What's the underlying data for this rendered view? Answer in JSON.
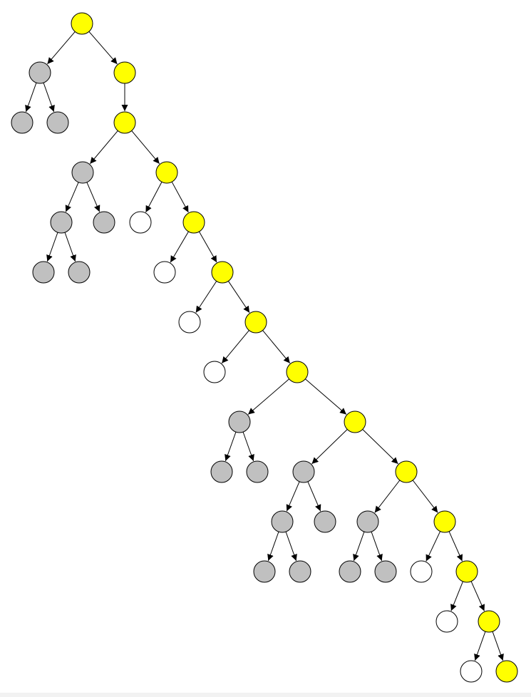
{
  "diagram": {
    "type": "tree",
    "colors": {
      "highlighted": "#ffff00",
      "explored": "#c0c0c0",
      "unexplored": "#ffffff",
      "stroke": "#000000"
    },
    "nodes": [
      {
        "id": "root",
        "state": "highlighted"
      },
      {
        "id": "n1",
        "state": "explored",
        "parent": "root"
      },
      {
        "id": "n1a",
        "state": "explored",
        "parent": "n1"
      },
      {
        "id": "n1b",
        "state": "explored",
        "parent": "n1"
      },
      {
        "id": "p1",
        "state": "highlighted",
        "parent": "root"
      },
      {
        "id": "p2",
        "state": "highlighted",
        "parent": "p1"
      },
      {
        "id": "g1",
        "state": "explored",
        "parent": "p2"
      },
      {
        "id": "g1a",
        "state": "explored",
        "parent": "g1"
      },
      {
        "id": "g1a1",
        "state": "explored",
        "parent": "g1a"
      },
      {
        "id": "g1a2",
        "state": "explored",
        "parent": "g1a"
      },
      {
        "id": "g1b",
        "state": "explored",
        "parent": "g1"
      },
      {
        "id": "p3",
        "state": "highlighted",
        "parent": "p2"
      },
      {
        "id": "w1",
        "state": "unexplored",
        "parent": "p3"
      },
      {
        "id": "p4",
        "state": "highlighted",
        "parent": "p3"
      },
      {
        "id": "w2",
        "state": "unexplored",
        "parent": "p4"
      },
      {
        "id": "p5",
        "state": "highlighted",
        "parent": "p4"
      },
      {
        "id": "w3",
        "state": "unexplored",
        "parent": "p5"
      },
      {
        "id": "p6",
        "state": "highlighted",
        "parent": "p5"
      },
      {
        "id": "w4",
        "state": "unexplored",
        "parent": "p6"
      },
      {
        "id": "p7",
        "state": "highlighted",
        "parent": "p6"
      },
      {
        "id": "g2",
        "state": "explored",
        "parent": "p7"
      },
      {
        "id": "g2a",
        "state": "explored",
        "parent": "g2"
      },
      {
        "id": "g2b",
        "state": "explored",
        "parent": "g2"
      },
      {
        "id": "p8",
        "state": "highlighted",
        "parent": "p7"
      },
      {
        "id": "g3",
        "state": "explored",
        "parent": "p8"
      },
      {
        "id": "g3a",
        "state": "explored",
        "parent": "g3"
      },
      {
        "id": "g3a1",
        "state": "explored",
        "parent": "g3a"
      },
      {
        "id": "g3a2",
        "state": "explored",
        "parent": "g3a"
      },
      {
        "id": "g3b",
        "state": "explored",
        "parent": "g3"
      },
      {
        "id": "p9",
        "state": "highlighted",
        "parent": "p8"
      },
      {
        "id": "g4",
        "state": "explored",
        "parent": "p9"
      },
      {
        "id": "g4a",
        "state": "explored",
        "parent": "g4"
      },
      {
        "id": "g4b",
        "state": "explored",
        "parent": "g4"
      },
      {
        "id": "p10",
        "state": "highlighted",
        "parent": "p9"
      },
      {
        "id": "w5",
        "state": "unexplored",
        "parent": "p10"
      },
      {
        "id": "p11",
        "state": "highlighted",
        "parent": "p10"
      },
      {
        "id": "w6",
        "state": "unexplored",
        "parent": "p11"
      },
      {
        "id": "p12",
        "state": "highlighted",
        "parent": "p11"
      },
      {
        "id": "w7",
        "state": "unexplored",
        "parent": "p12"
      },
      {
        "id": "p13",
        "state": "highlighted",
        "parent": "p12"
      }
    ]
  }
}
